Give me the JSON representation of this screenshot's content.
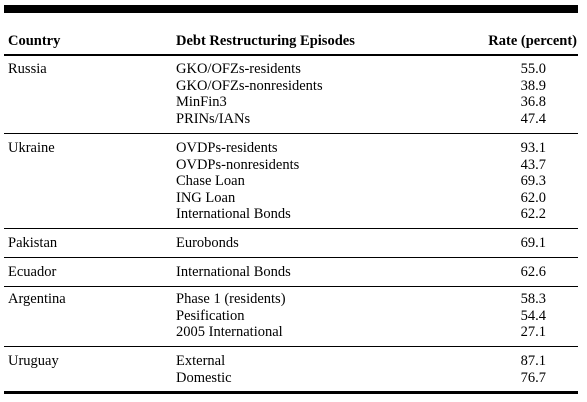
{
  "table": {
    "headers": {
      "country": "Country",
      "episodes": "Debt Restructuring Episodes",
      "rate": "Rate (percent)"
    },
    "groups": [
      {
        "country": "Russia",
        "rows": [
          {
            "episode": "GKO/OFZs-residents",
            "rate": "55.0"
          },
          {
            "episode": "GKO/OFZs-nonresidents",
            "rate": "38.9"
          },
          {
            "episode": "MinFin3",
            "rate": "36.8"
          },
          {
            "episode": "PRINs/IANs",
            "rate": "47.4"
          }
        ]
      },
      {
        "country": "Ukraine",
        "rows": [
          {
            "episode": "OVDPs-residents",
            "rate": "93.1"
          },
          {
            "episode": "OVDPs-nonresidents",
            "rate": "43.7"
          },
          {
            "episode": "Chase Loan",
            "rate": "69.3"
          },
          {
            "episode": "ING Loan",
            "rate": "62.0"
          },
          {
            "episode": "International Bonds",
            "rate": "62.2"
          }
        ]
      },
      {
        "country": "Pakistan",
        "rows": [
          {
            "episode": "Eurobonds",
            "rate": "69.1"
          }
        ]
      },
      {
        "country": "Ecuador",
        "rows": [
          {
            "episode": "International Bonds",
            "rate": "62.6"
          }
        ]
      },
      {
        "country": "Argentina",
        "rows": [
          {
            "episode": "Phase 1 (residents)",
            "rate": "58.3"
          },
          {
            "episode": "Pesification",
            "rate": "54.4"
          },
          {
            "episode": "2005 International",
            "rate": "27.1"
          }
        ]
      },
      {
        "country": "Uruguay",
        "rows": [
          {
            "episode": "External",
            "rate": "87.1"
          },
          {
            "episode": "Domestic",
            "rate": "76.7"
          }
        ]
      }
    ]
  }
}
